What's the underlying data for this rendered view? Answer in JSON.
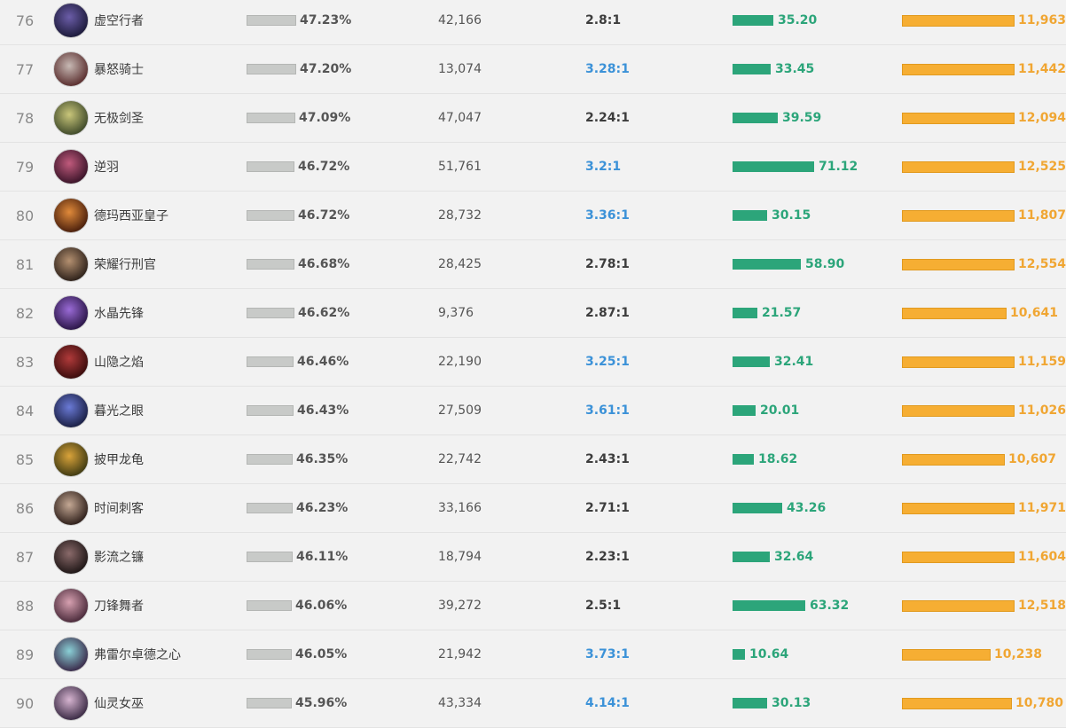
{
  "table": {
    "rows": [
      {
        "rank": "76",
        "name": "虚空行者",
        "winrate": "47.23%",
        "games": "42,166",
        "kda": "2.8:1",
        "kda_style": "dark",
        "green_value": "35.20",
        "orange_value": "11,963",
        "avatar_colors": [
          "#6b5da8",
          "#1c1a3a"
        ]
      },
      {
        "rank": "77",
        "name": "暴怒骑士",
        "winrate": "47.20%",
        "games": "13,074",
        "kda": "3.28:1",
        "kda_style": "blue",
        "green_value": "33.45",
        "orange_value": "11,442",
        "avatar_colors": [
          "#c7b9b4",
          "#5a2e2e"
        ]
      },
      {
        "rank": "78",
        "name": "无极剑圣",
        "winrate": "47.09%",
        "games": "47,047",
        "kda": "2.24:1",
        "kda_style": "dark",
        "green_value": "39.59",
        "orange_value": "12,094",
        "avatar_colors": [
          "#c9c67a",
          "#3f4a2a"
        ]
      },
      {
        "rank": "79",
        "name": "逆羽",
        "winrate": "46.72%",
        "games": "51,761",
        "kda": "3.2:1",
        "kda_style": "blue",
        "green_value": "71.12",
        "orange_value": "12,525",
        "avatar_colors": [
          "#c05a7c",
          "#3a1429"
        ]
      },
      {
        "rank": "80",
        "name": "德玛西亚皇子",
        "winrate": "46.72%",
        "games": "28,732",
        "kda": "3.36:1",
        "kda_style": "blue",
        "green_value": "30.15",
        "orange_value": "11,807",
        "avatar_colors": [
          "#e08a3a",
          "#4a1f0c"
        ]
      },
      {
        "rank": "81",
        "name": "荣耀行刑官",
        "winrate": "46.68%",
        "games": "28,425",
        "kda": "2.78:1",
        "kda_style": "dark",
        "green_value": "58.90",
        "orange_value": "12,554",
        "avatar_colors": [
          "#b49070",
          "#2d211a"
        ]
      },
      {
        "rank": "82",
        "name": "水晶先锋",
        "winrate": "46.62%",
        "games": "9,376",
        "kda": "2.87:1",
        "kda_style": "dark",
        "green_value": "21.57",
        "orange_value": "10,641",
        "avatar_colors": [
          "#9a6bd6",
          "#2a1547"
        ]
      },
      {
        "rank": "83",
        "name": "山隐之焰",
        "winrate": "46.46%",
        "games": "22,190",
        "kda": "3.25:1",
        "kda_style": "blue",
        "green_value": "32.41",
        "orange_value": "11,159",
        "avatar_colors": [
          "#b03a3a",
          "#3a0c0c"
        ]
      },
      {
        "rank": "84",
        "name": "暮光之眼",
        "winrate": "46.43%",
        "games": "27,509",
        "kda": "3.61:1",
        "kda_style": "blue",
        "green_value": "20.01",
        "orange_value": "11,026",
        "avatar_colors": [
          "#6a7ad6",
          "#1a1f44"
        ]
      },
      {
        "rank": "85",
        "name": "披甲龙龟",
        "winrate": "46.35%",
        "games": "22,742",
        "kda": "2.43:1",
        "kda_style": "dark",
        "green_value": "18.62",
        "orange_value": "10,607",
        "avatar_colors": [
          "#d9a33a",
          "#3f3a12"
        ]
      },
      {
        "rank": "86",
        "name": "时间刺客",
        "winrate": "46.23%",
        "games": "33,166",
        "kda": "2.71:1",
        "kda_style": "dark",
        "green_value": "43.26",
        "orange_value": "11,971",
        "avatar_colors": [
          "#c4a894",
          "#2e1f1a"
        ]
      },
      {
        "rank": "87",
        "name": "影流之镰",
        "winrate": "46.11%",
        "games": "18,794",
        "kda": "2.23:1",
        "kda_style": "dark",
        "green_value": "32.64",
        "orange_value": "11,604",
        "avatar_colors": [
          "#8a6a6a",
          "#1e1616"
        ]
      },
      {
        "rank": "88",
        "name": "刀锋舞者",
        "winrate": "46.06%",
        "games": "39,272",
        "kda": "2.5:1",
        "kda_style": "dark",
        "green_value": "63.32",
        "orange_value": "12,518",
        "avatar_colors": [
          "#d6a0b0",
          "#4a2a3a"
        ]
      },
      {
        "rank": "89",
        "name": "弗雷尔卓德之心",
        "winrate": "46.05%",
        "games": "21,942",
        "kda": "3.73:1",
        "kda_style": "blue",
        "green_value": "10.64",
        "orange_value": "10,238",
        "avatar_colors": [
          "#8ad0d6",
          "#3a2a4a"
        ]
      },
      {
        "rank": "90",
        "name": "仙灵女巫",
        "winrate": "45.96%",
        "games": "43,334",
        "kda": "4.14:1",
        "kda_style": "blue",
        "green_value": "30.13",
        "orange_value": "10,780",
        "avatar_colors": [
          "#d6b4d0",
          "#3a2a44"
        ]
      }
    ]
  }
}
